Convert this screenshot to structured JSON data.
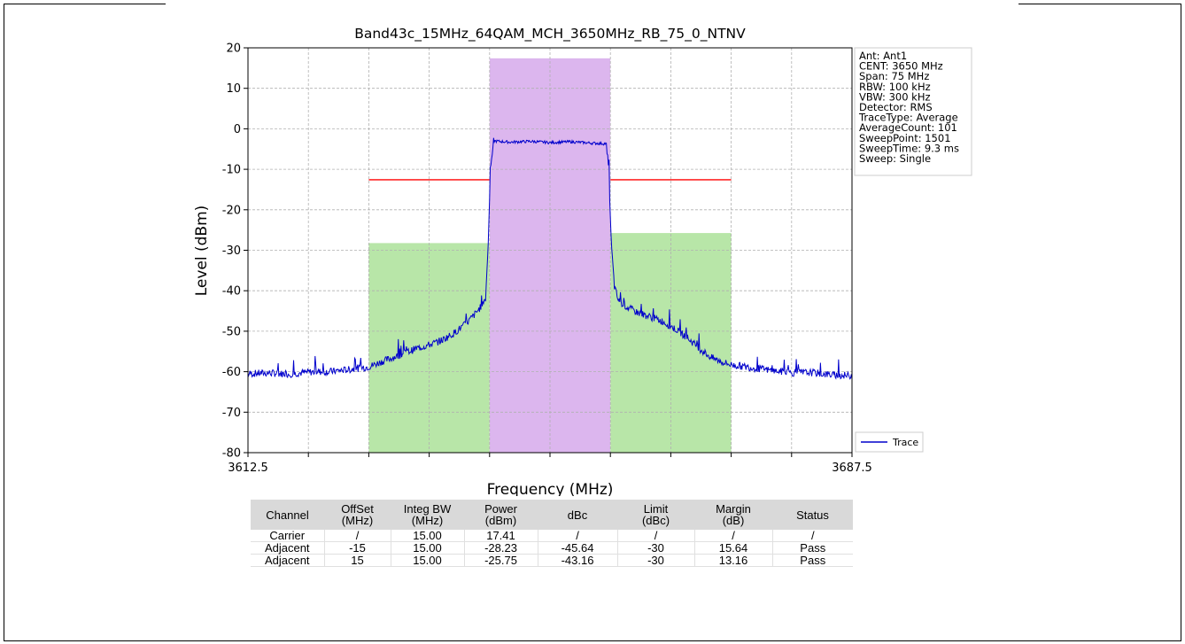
{
  "chart_data": {
    "type": "line",
    "title": "Band43c_15MHz_64QAM_MCH_3650MHz_RB_75_0_NTNV",
    "xlabel": "Frequency (MHz)",
    "ylabel": "Level (dBm)",
    "xlim": [
      3612.5,
      3687.5
    ],
    "ylim": [
      -80,
      20
    ],
    "x_tick_labels": [
      "3612.5",
      "3687.5"
    ],
    "y_ticks": [
      20,
      10,
      0,
      -10,
      -20,
      -30,
      -40,
      -50,
      -60,
      -70,
      -80
    ],
    "grid": true,
    "legend_placement": "lower-right-outside",
    "legend": [
      "Trace"
    ],
    "info_box": [
      "Ant: Ant1",
      "CENT: 3650 MHz",
      "Span: 75 MHz",
      "RBW: 100 kHz",
      "VBW: 300 kHz",
      "Detector: RMS",
      "TraceType: Average",
      "AverageCount: 101",
      "SweepPoint: 1501",
      "SweepTime: 9.3 ms",
      "Sweep: Single"
    ],
    "bands": [
      {
        "role": "carrier",
        "x0": 3642.5,
        "x1": 3657.5,
        "level": 17.41,
        "color": "#dcb6ee"
      },
      {
        "role": "adjacent-lower",
        "x0": 3627.5,
        "x1": 3642.5,
        "level": -28.23,
        "color": "#b8e6a8"
      },
      {
        "role": "adjacent-upper",
        "x0": 3657.5,
        "x1": 3672.5,
        "level": -25.75,
        "color": "#b8e6a8"
      }
    ],
    "limit_lines": [
      {
        "x0": 3627.5,
        "x1": 3642.5,
        "level": -12.6
      },
      {
        "x0": 3657.5,
        "x1": 3672.5,
        "level": -12.6
      }
    ],
    "series": [
      {
        "name": "Trace",
        "color": "#0000cc",
        "x": [
          3612.5,
          3615,
          3617.5,
          3620,
          3622.5,
          3625,
          3627.5,
          3629,
          3630.5,
          3632,
          3633.5,
          3635,
          3636.5,
          3638,
          3639.5,
          3640.5,
          3641.5,
          3642,
          3642.3,
          3642.6,
          3643,
          3645,
          3647.5,
          3650,
          3652.5,
          3655,
          3657,
          3657.3,
          3657.6,
          3658,
          3658.5,
          3659.5,
          3661,
          3662.5,
          3664,
          3665.5,
          3667,
          3668.5,
          3670,
          3671.5,
          3672.5,
          3675,
          3677.5,
          3680,
          3682.5,
          3685,
          3687.5
        ],
        "values": [
          -60.5,
          -60.3,
          -60.6,
          -60.1,
          -60.0,
          -59.5,
          -58.8,
          -57.6,
          -56.5,
          -55.4,
          -54.2,
          -53.4,
          -52.3,
          -50.6,
          -48.3,
          -46.2,
          -43.8,
          -41.8,
          -30.0,
          -10.0,
          -3.0,
          -3.3,
          -3.1,
          -3.4,
          -3.2,
          -3.5,
          -3.7,
          -10.0,
          -28.0,
          -39.0,
          -42.5,
          -44.0,
          -45.5,
          -46.5,
          -47.6,
          -49.4,
          -51.5,
          -54.2,
          -56.5,
          -57.7,
          -58.3,
          -59.0,
          -59.7,
          -60.3,
          -60.2,
          -60.8,
          -61.0
        ]
      }
    ]
  },
  "results_table": {
    "headers": [
      "Channel",
      "OffSet\n(MHz)",
      "Integ BW\n(MHz)",
      "Power\n(dBm)",
      "dBc",
      "Limit\n(dBc)",
      "Margin\n(dB)",
      "Status"
    ],
    "rows": [
      [
        "Carrier",
        "/",
        "15.00",
        "17.41",
        "/",
        "/",
        "/",
        "/"
      ],
      [
        "Adjacent",
        "-15",
        "15.00",
        "-28.23",
        "-45.64",
        "-30",
        "15.64",
        "Pass"
      ],
      [
        "Adjacent",
        "15",
        "15.00",
        "-25.75",
        "-43.16",
        "-30",
        "13.16",
        "Pass"
      ]
    ]
  }
}
